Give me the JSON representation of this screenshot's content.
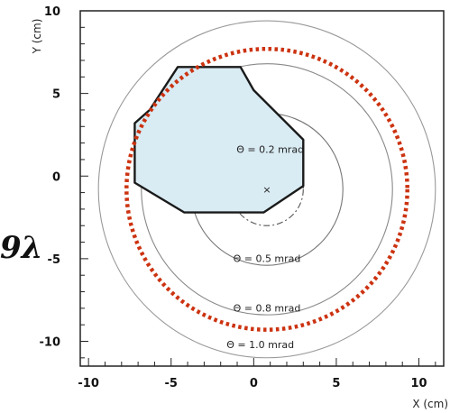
{
  "side_label": "9λ",
  "chart_data": {
    "type": "scatter",
    "xlabel": "X (cm)",
    "ylabel": "Y (cm)",
    "xlim": [
      -10.5,
      11.5
    ],
    "ylim": [
      -11.5,
      10
    ],
    "grid": false,
    "xticks": [
      -10,
      -5,
      0,
      5,
      10
    ],
    "yticks": [
      -10,
      -5,
      0,
      5,
      10
    ],
    "center": [
      0.8,
      -0.8
    ],
    "circles": [
      {
        "label": "Θ = 0.2 mrad",
        "radius": 2.2,
        "style": "dash-dot",
        "color": "#555555",
        "label_pos": [
          1.0,
          1.4
        ]
      },
      {
        "label": "Θ = 0.5 mrad",
        "radius": 4.6,
        "style": "solid",
        "color": "#777777",
        "label_pos": [
          0.8,
          -5.2
        ]
      },
      {
        "label": "Θ = 0.8 mrad",
        "radius": 7.6,
        "style": "solid",
        "color": "#888888",
        "label_pos": [
          0.8,
          -8.2
        ]
      },
      {
        "label": "Θ = 1.0 mrad",
        "radius": 10.2,
        "style": "solid",
        "color": "#999999",
        "label_pos": [
          0.4,
          -10.4
        ]
      }
    ],
    "dotted_circle": {
      "center": [
        0.8,
        -0.8
      ],
      "radius": 8.5,
      "color": "#cc3311"
    },
    "polygon": {
      "fill": "#d9ebf3",
      "stroke": "#1a1a1a",
      "points": [
        [
          -4.6,
          6.6
        ],
        [
          -0.8,
          6.6
        ],
        [
          0,
          5.2
        ],
        [
          3.0,
          2.2
        ],
        [
          3.0,
          -0.6
        ],
        [
          0.6,
          -2.2
        ],
        [
          -4.2,
          -2.2
        ],
        [
          -7.2,
          -0.4
        ],
        [
          -7.2,
          3.2
        ],
        [
          -6.3,
          4.0
        ]
      ]
    },
    "marker": {
      "x": 0.8,
      "y": -0.8,
      "symbol": "×"
    }
  }
}
